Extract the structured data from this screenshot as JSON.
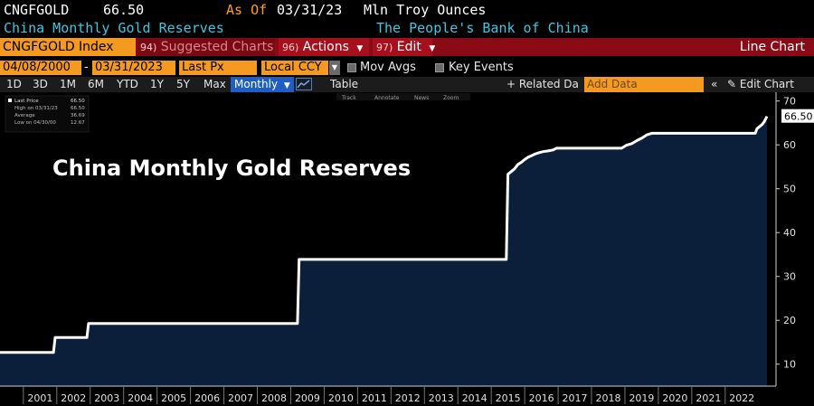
{
  "header": {
    "ticker": "CNGFGOLD",
    "price": "66.50",
    "as_of_label": "As Of",
    "as_of_date": "03/31/23",
    "units": "Mln Troy Ounces",
    "description": "China Monthly Gold Reserves",
    "source": "The People's Bank of China"
  },
  "menubar": {
    "index_field": "CNGFGOLD Index",
    "suggested_num": "94)",
    "suggested_label": "Suggested Charts",
    "actions_num": "96)",
    "actions_label": "Actions",
    "edit_num": "97)",
    "edit_label": "Edit",
    "chart_type": "Line Chart"
  },
  "controls": {
    "start_date": "04/08/2000",
    "end_date": "03/31/2023",
    "field": "Last Px",
    "currency": "Local CCY",
    "mov_avgs": "Mov Avgs",
    "key_events": "Key Events"
  },
  "toolbar": {
    "ranges": [
      "1D",
      "3D",
      "1M",
      "6M",
      "YTD",
      "1Y",
      "5Y",
      "Max"
    ],
    "frequency": "Monthly",
    "table": "Table",
    "related_data": "+ Related Data",
    "add_data_placeholder": "Add Data",
    "edit_chart": "Edit Chart"
  },
  "subtools": {
    "track": "Track",
    "annotate": "Annotate",
    "news": "News",
    "zoom": "Zoom"
  },
  "legend": {
    "last_price_label": "Last Price",
    "last_price_value": "66.50",
    "high_label": "High on 03/31/23",
    "high_value": "66.50",
    "average_label": "Average",
    "average_value": "36.69",
    "low_label": "Low on 04/30/00",
    "low_value": "12.67"
  },
  "overlay_title": "China Monthly Gold Reserves",
  "last_value_tag": "66.50",
  "chart_data": {
    "type": "area",
    "title": "China Monthly Gold Reserves",
    "ylim": [
      5,
      72
    ],
    "y_ticks": [
      10,
      20,
      30,
      40,
      50,
      60,
      70
    ],
    "x_ticks": [
      "2001",
      "2002",
      "2003",
      "2004",
      "2005",
      "2006",
      "2007",
      "2008",
      "2009",
      "2010",
      "2011",
      "2012",
      "2013",
      "2014",
      "2015",
      "2016",
      "2017",
      "2018",
      "2019",
      "2020",
      "2021",
      "2022"
    ],
    "x_range": [
      2000.3,
      2023.25
    ],
    "grid": false,
    "line_color": "#ffffff",
    "fill_color": "#0b1f3b",
    "series": [
      {
        "values": [
          [
            2000.3,
            12.67
          ],
          [
            2001.9,
            12.67
          ],
          [
            2001.95,
            16.1
          ],
          [
            2002.9,
            16.1
          ],
          [
            2002.95,
            19.29
          ],
          [
            2009.2,
            19.29
          ],
          [
            2009.25,
            33.89
          ],
          [
            2015.45,
            33.89
          ],
          [
            2015.5,
            53.3
          ],
          [
            2015.6,
            53.93
          ],
          [
            2015.7,
            54.55
          ],
          [
            2015.8,
            55.55
          ],
          [
            2015.9,
            56.03
          ],
          [
            2016.0,
            56.66
          ],
          [
            2016.1,
            57.18
          ],
          [
            2016.2,
            57.51
          ],
          [
            2016.3,
            57.89
          ],
          [
            2016.4,
            58.14
          ],
          [
            2016.45,
            58.25
          ],
          [
            2016.55,
            58.46
          ],
          [
            2016.7,
            58.62
          ],
          [
            2016.85,
            58.85
          ],
          [
            2016.95,
            59.24
          ],
          [
            2018.9,
            59.24
          ],
          [
            2019.05,
            59.94
          ],
          [
            2019.2,
            60.26
          ],
          [
            2019.35,
            60.94
          ],
          [
            2019.5,
            61.5
          ],
          [
            2019.65,
            62.26
          ],
          [
            2019.8,
            62.64
          ],
          [
            2022.9,
            62.64
          ],
          [
            2022.95,
            63.67
          ],
          [
            2023.0,
            64.0
          ],
          [
            2023.1,
            64.63
          ],
          [
            2023.17,
            65.27
          ],
          [
            2023.25,
            66.5
          ]
        ]
      }
    ]
  }
}
